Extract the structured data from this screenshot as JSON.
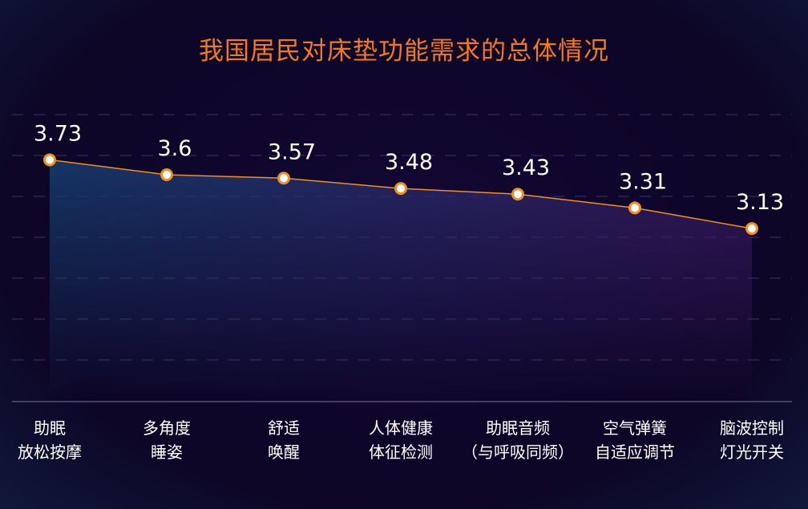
{
  "chart_data": {
    "type": "area",
    "title": "我国居民对床垫功能需求的总体情况",
    "categories": [
      [
        "助眠",
        "放松按摩"
      ],
      [
        "多角度",
        "睡姿"
      ],
      [
        "舒适",
        "唤醒"
      ],
      [
        "人体健康",
        "体征检测"
      ],
      [
        "助眠音频",
        "（与呼吸同频）"
      ],
      [
        "空气弹簧",
        "自适应调节"
      ],
      [
        "脑波控制",
        "灯光开关"
      ]
    ],
    "values": [
      3.73,
      3.6,
      3.57,
      3.48,
      3.43,
      3.31,
      3.13
    ],
    "data_labels": [
      "3.73",
      "3.6",
      "3.57",
      "3.48",
      "3.43",
      "3.31",
      "3.13"
    ],
    "ylim": [
      1.625,
      4.125
    ],
    "grid": true,
    "colors": {
      "title": "#f07a1e",
      "line": "#f0901e",
      "marker_fill": "#ffffff",
      "area_left": "#173d6e",
      "area_right": "#3b1a62",
      "label": "#ffffff"
    }
  }
}
